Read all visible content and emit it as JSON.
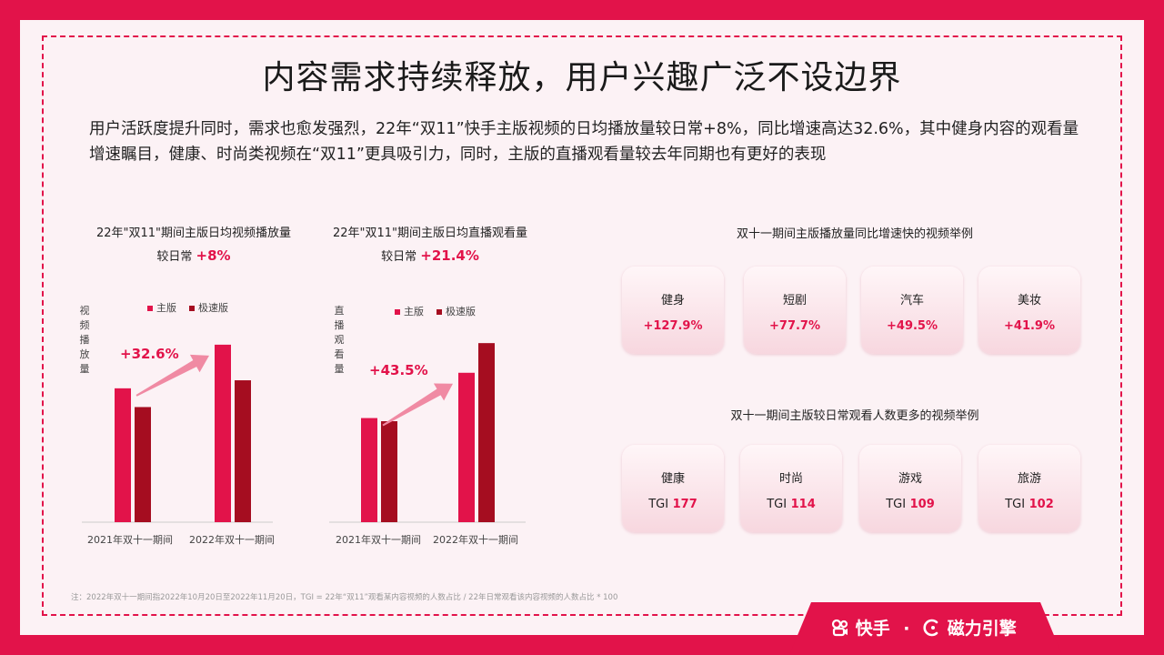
{
  "title": "内容需求持续释放，用户兴趣广泛不设边界",
  "intro": "用户活跃度提升同时，需求也愈发强烈，22年“双11”快手主版视频的日均播放量较日常+8%，同比增速高达32.6%，其中健身内容的观看量增速瞩目，健康、时尚类视频在“双11”更具吸引力，同时，主版的直播观看量较去年同期也有更好的表现",
  "colors": {
    "main": "#e2134a",
    "speed": "#a50d20",
    "accent": "#e2134a"
  },
  "charts": {
    "left": {
      "title_line1": "22年\"双11\"期间主版日均视频播放量",
      "title_line2_prefix": "较日常",
      "title_line2_value": "+8%",
      "ylabel": "视频播放量",
      "growth": "+32.6%"
    },
    "right": {
      "title_line1": "22年\"双11\"期间主版日均直播观看量",
      "title_line2_prefix": "较日常",
      "title_line2_value": "+21.4%",
      "ylabel": "直播观看量",
      "growth": "+43.5%"
    }
  },
  "chart_data": [
    {
      "type": "bar",
      "categories": [
        "2021年双十一期间",
        "2022年双十一期间"
      ],
      "series": [
        {
          "name": "主版",
          "values": [
            100,
            132.6
          ]
        },
        {
          "name": "极速版",
          "values": [
            86,
            106
          ]
        }
      ],
      "title": "22年\"双11\"期间主版日均视频播放量",
      "ylabel": "视频播放量",
      "annotations": [
        "+32.6%"
      ],
      "ylim": [
        0,
        140
      ],
      "legend": "top",
      "grid": false
    },
    {
      "type": "bar",
      "categories": [
        "2021年双十一期间",
        "2022年双十一期间"
      ],
      "series": [
        {
          "name": "主版",
          "values": [
            100,
            143.5
          ]
        },
        {
          "name": "极速版",
          "values": [
            97,
            172
          ]
        }
      ],
      "title": "22年\"双11\"期间主版日均直播观看量",
      "ylabel": "直播观看量",
      "annotations": [
        "+43.5%"
      ],
      "ylim": [
        0,
        180
      ],
      "legend": "top",
      "grid": false
    }
  ],
  "section1": {
    "title": "双十一期间主版播放量同比增速快的视频举例",
    "cards": [
      {
        "name": "健身",
        "value": "+127.9%"
      },
      {
        "name": "短剧",
        "value": "+77.7%"
      },
      {
        "name": "汽车",
        "value": "+49.5%"
      },
      {
        "name": "美妆",
        "value": "+41.9%"
      }
    ]
  },
  "section2": {
    "title": "双十一期间主版较日常观看人数更多的视频举例",
    "prefix": "TGI",
    "cards": [
      {
        "name": "健康",
        "value": "177"
      },
      {
        "name": "时尚",
        "value": "114"
      },
      {
        "name": "游戏",
        "value": "109"
      },
      {
        "name": "旅游",
        "value": "102"
      }
    ]
  },
  "note": "注：2022年双十一期间指2022年10月20日至2022年11月20日，TGI = 22年“双11”观看某内容视频的人数占比 / 22年日常观看该内容视频的人数占比 * 100",
  "brand": {
    "kuaishou": "快手",
    "sep": "·",
    "engine": "磁力引擎"
  }
}
